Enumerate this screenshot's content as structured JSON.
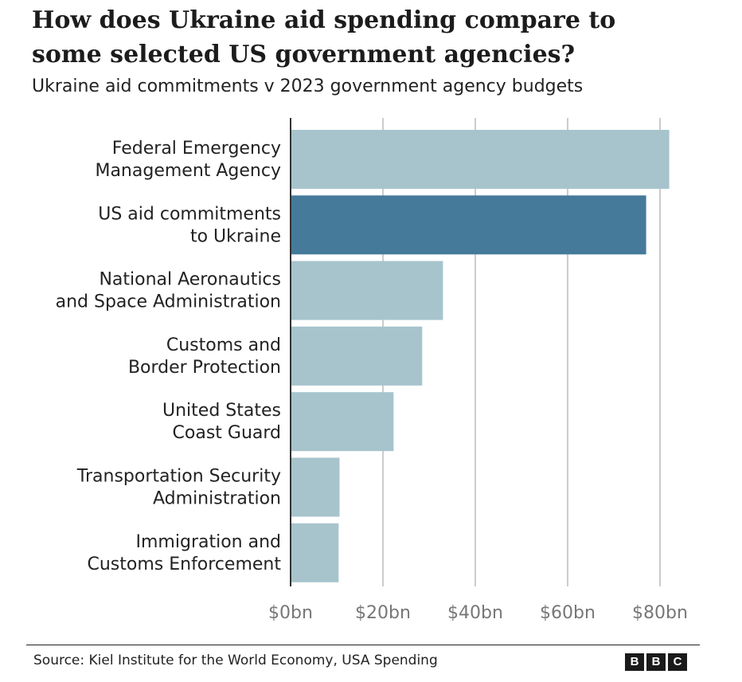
{
  "header": {
    "title": "How does Ukraine aid spending compare to\nsome selected US government agencies?",
    "subtitle": "Ukraine aid commitments v 2023 government agency budgets"
  },
  "footer": {
    "source": "Source: Kiel Institute for the World Economy, USA Spending",
    "logo_letters": [
      "B",
      "B",
      "C"
    ]
  },
  "colors": {
    "bar": "#a7c4cd",
    "highlight_bar": "#457a9b",
    "gridline": "#cccccc",
    "axis": "#333333"
  },
  "chart_data": {
    "type": "bar",
    "orientation": "horizontal",
    "title": "How does Ukraine aid spending compare to some selected US government agencies?",
    "subtitle": "Ukraine aid commitments v 2023 government agency budgets",
    "categories": [
      [
        "Federal Emergency",
        "Management Agency"
      ],
      [
        "US aid commitments",
        "to Ukraine"
      ],
      [
        "National Aeronautics",
        "and Space Administration"
      ],
      [
        "Customs and",
        "Border Protection"
      ],
      [
        "United States",
        "Coast Guard"
      ],
      [
        "Transportation Security",
        "Administration"
      ],
      [
        "Immigration and",
        "Customs Enforcement"
      ]
    ],
    "values": [
      82,
      77,
      33,
      28.5,
      22.3,
      10.6,
      10.4
    ],
    "highlight_index": 1,
    "units": "bn USD",
    "xlim": [
      0,
      80
    ],
    "xticks": [
      0,
      20,
      40,
      60,
      80
    ],
    "xtick_labels": [
      "$0bn",
      "$20bn",
      "$40bn",
      "$60bn",
      "$80bn"
    ],
    "grid": true,
    "xlabel": "",
    "ylabel": ""
  }
}
